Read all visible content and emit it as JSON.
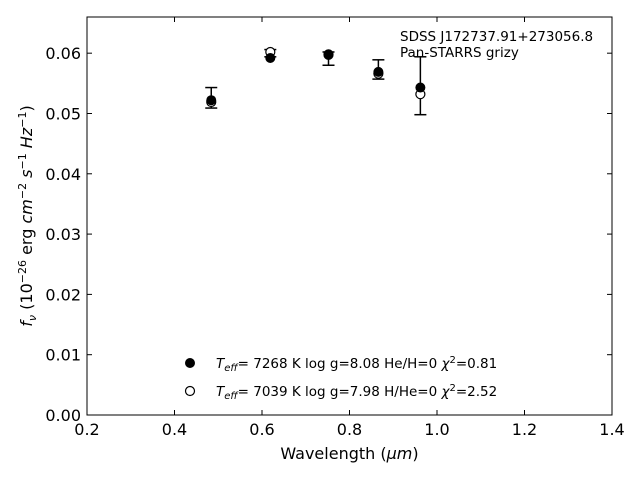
{
  "chart_data": {
    "type": "scatter",
    "xlabel": {
      "prefix": "Wavelength (",
      "unit": "μm",
      "suffix": ")"
    },
    "ylabel": {
      "f": "f",
      "fsub": "ν",
      "pre": " (10",
      "exp1": "−26",
      "mid": " erg ",
      "cm": "cm",
      "exp2": "−2",
      "s": " s",
      "exp3": "−1",
      "hz": " Hz",
      "exp4": "−1",
      "post": ")"
    },
    "xlim": [
      0.2,
      1.4
    ],
    "ylim": [
      0.0,
      0.066
    ],
    "xticks": [
      "0.2",
      "0.4",
      "0.6",
      "0.8",
      "1.0",
      "1.2",
      "1.4"
    ],
    "xtick_values": [
      0.2,
      0.4,
      0.6,
      0.8,
      1.0,
      1.2,
      1.4
    ],
    "yticks": [
      "0.00",
      "0.01",
      "0.02",
      "0.03",
      "0.04",
      "0.05",
      "0.06"
    ],
    "ytick_values": [
      0.0,
      0.01,
      0.02,
      0.03,
      0.04,
      0.05,
      0.06
    ],
    "annotations": [
      "SDSS J172737.91+273056.8",
      "Pan-STARRS grizy"
    ],
    "observed": {
      "x": [
        0.484,
        0.619,
        0.752,
        0.866,
        0.962
      ],
      "y": [
        0.0526,
        0.06,
        0.0591,
        0.0573,
        0.0546
      ],
      "yerr": [
        0.0017,
        0.0006,
        0.0011,
        0.0016,
        0.0048
      ]
    },
    "series": [
      {
        "name": {
          "t": "T",
          "tsub": "eff",
          "a": "=  7268 K  log g=8.08  He/H=0  ",
          "chi": "χ",
          "chisup": "2",
          "b": "=0.81"
        },
        "marker": "filled-circle",
        "x": [
          0.484,
          0.619,
          0.752,
          0.866,
          0.962
        ],
        "y": [
          0.0522,
          0.0592,
          0.0597,
          0.0569,
          0.0543
        ]
      },
      {
        "name": {
          "t": "T",
          "tsub": "eff",
          "a": "=  7039 K  log g=7.98  H/He=0  ",
          "chi": "χ",
          "chisup": "2",
          "b": "=2.52"
        },
        "marker": "open-circle",
        "x": [
          0.484,
          0.619,
          0.752,
          0.866,
          0.962
        ],
        "y": [
          0.0519,
          0.0602,
          0.0598,
          0.0566,
          0.0532
        ]
      }
    ]
  }
}
